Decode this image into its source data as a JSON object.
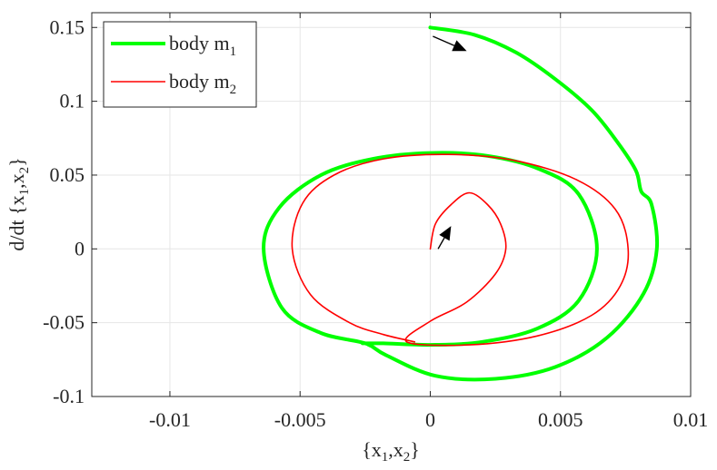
{
  "chart_data": {
    "type": "line",
    "title": "",
    "xlabel": "{x1,x2}",
    "ylabel": "d/dt {x1,x2}",
    "xlim": [
      -0.013,
      0.01
    ],
    "ylim": [
      -0.1,
      0.16
    ],
    "grid": true,
    "legend_position": "top-left",
    "x_ticks": [
      {
        "value": -0.01,
        "label": "-0.01"
      },
      {
        "value": -0.005,
        "label": "-0.005"
      },
      {
        "value": 0,
        "label": "0"
      },
      {
        "value": 0.005,
        "label": "0.005"
      },
      {
        "value": 0.01,
        "label": "0.01"
      }
    ],
    "y_ticks": [
      {
        "value": -0.1,
        "label": "-0.1"
      },
      {
        "value": -0.05,
        "label": "-0.05"
      },
      {
        "value": 0,
        "label": "0"
      },
      {
        "value": 0.05,
        "label": "0.05"
      },
      {
        "value": 0.1,
        "label": "0.1"
      },
      {
        "value": 0.15,
        "label": "0.15"
      }
    ],
    "series": [
      {
        "name": "body m1",
        "color": "#00ff00",
        "points": [
          [
            0,
            0.15
          ],
          [
            0.0017,
            0.145
          ],
          [
            0.0033,
            0.133
          ],
          [
            0.0048,
            0.115
          ],
          [
            0.0062,
            0.094
          ],
          [
            0.0072,
            0.072
          ],
          [
            0.0079,
            0.053
          ],
          [
            0.0081,
            0.039
          ],
          [
            0.0085,
            0.03
          ],
          [
            0.0087,
            0.0
          ],
          [
            0.0082,
            -0.03
          ],
          [
            0.0068,
            -0.06
          ],
          [
            0.0048,
            -0.08
          ],
          [
            0.0025,
            -0.088
          ],
          [
            0.0002,
            -0.086
          ],
          [
            -0.0017,
            -0.072
          ],
          [
            -0.0025,
            -0.064
          ],
          [
            -0.0042,
            -0.057
          ],
          [
            -0.0057,
            -0.04
          ],
          [
            -0.0064,
            0.0
          ],
          [
            -0.0058,
            0.028
          ],
          [
            -0.0042,
            0.05
          ],
          [
            -0.0022,
            0.061
          ],
          [
            0.0,
            0.065
          ],
          [
            0.0022,
            0.063
          ],
          [
            0.0042,
            0.054
          ],
          [
            0.0057,
            0.037
          ],
          [
            0.0064,
            0.0
          ],
          [
            0.0057,
            -0.035
          ],
          [
            0.0041,
            -0.054
          ],
          [
            0.002,
            -0.063
          ],
          [
            0.0,
            -0.065
          ],
          [
            -0.0018,
            -0.064
          ],
          [
            -0.0026,
            -0.064
          ]
        ]
      },
      {
        "name": "body m2",
        "color": "#ff0000",
        "points": [
          [
            0,
            0.0
          ],
          [
            0.0002,
            0.017
          ],
          [
            0.0008,
            0.03
          ],
          [
            0.0015,
            0.038
          ],
          [
            0.0022,
            0.03
          ],
          [
            0.0027,
            0.017
          ],
          [
            0.0029,
            0.0
          ],
          [
            0.0025,
            -0.017
          ],
          [
            0.0014,
            -0.036
          ],
          [
            0.0,
            -0.049
          ],
          [
            -0.0009,
            -0.063
          ],
          [
            0.0015,
            -0.065
          ],
          [
            0.0041,
            -0.059
          ],
          [
            0.0062,
            -0.045
          ],
          [
            0.0073,
            -0.025
          ],
          [
            0.0076,
            0.0
          ],
          [
            0.0071,
            0.027
          ],
          [
            0.0056,
            0.047
          ],
          [
            0.0032,
            0.06
          ],
          [
            0.0007,
            0.064
          ],
          [
            -0.0018,
            0.061
          ],
          [
            -0.0037,
            0.05
          ],
          [
            -0.0049,
            0.031
          ],
          [
            -0.0053,
            0.0
          ],
          [
            -0.0046,
            -0.031
          ],
          [
            -0.0031,
            -0.05
          ],
          [
            -0.0018,
            -0.058
          ],
          [
            -0.0006,
            -0.063
          ]
        ]
      }
    ],
    "arrows": [
      {
        "series": "body m1",
        "from": [
          0.0001,
          0.144
        ],
        "to": [
          0.0014,
          0.134
        ]
      },
      {
        "series": "body m2",
        "from": [
          0.0003,
          0.0
        ],
        "to": [
          0.0008,
          0.0155
        ]
      }
    ],
    "legend": [
      {
        "label": "body m",
        "subscript": "1",
        "color": "#00ff00"
      },
      {
        "label": "body m",
        "subscript": "2",
        "color": "#ff0000"
      }
    ]
  }
}
